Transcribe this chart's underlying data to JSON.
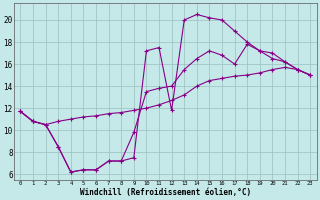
{
  "xlabel": "Windchill (Refroidissement éolien,°C)",
  "background_color": "#c5e8e8",
  "line_color": "#880088",
  "xlim": [
    -0.5,
    23.5
  ],
  "ylim": [
    5.5,
    21.5
  ],
  "yticks": [
    6,
    8,
    10,
    12,
    14,
    16,
    18,
    20
  ],
  "xticks": [
    0,
    1,
    2,
    3,
    4,
    5,
    6,
    7,
    8,
    9,
    10,
    11,
    12,
    13,
    14,
    15,
    16,
    17,
    18,
    19,
    20,
    21,
    22,
    23
  ],
  "line1_x": [
    0,
    1,
    2,
    3,
    4,
    5,
    6,
    7,
    8,
    9,
    10,
    11,
    12,
    13,
    14,
    15,
    16,
    17,
    18,
    19,
    20,
    21,
    22,
    23
  ],
  "line1_y": [
    11.7,
    10.8,
    10.5,
    8.5,
    6.2,
    6.4,
    6.4,
    7.2,
    7.2,
    7.5,
    17.2,
    17.5,
    11.8,
    20.0,
    20.5,
    20.2,
    20.0,
    19.0,
    18.0,
    17.2,
    17.0,
    16.2,
    15.5,
    15.0
  ],
  "line2_x": [
    0,
    1,
    2,
    3,
    4,
    5,
    6,
    7,
    8,
    9,
    10,
    11,
    12,
    13,
    14,
    15,
    16,
    17,
    18,
    19,
    20,
    21,
    22,
    23
  ],
  "line2_y": [
    11.7,
    10.8,
    10.5,
    8.5,
    6.2,
    6.4,
    6.4,
    7.2,
    7.2,
    9.8,
    13.5,
    13.8,
    14.0,
    15.5,
    16.5,
    17.2,
    16.8,
    16.0,
    17.8,
    17.2,
    16.5,
    16.2,
    15.5,
    15.0
  ],
  "line3_x": [
    0,
    1,
    2,
    3,
    4,
    5,
    6,
    7,
    8,
    9,
    10,
    11,
    12,
    13,
    14,
    15,
    16,
    17,
    18,
    19,
    20,
    21,
    22,
    23
  ],
  "line3_y": [
    11.7,
    10.8,
    10.5,
    10.8,
    11.0,
    11.2,
    11.3,
    11.5,
    11.6,
    11.8,
    12.0,
    12.3,
    12.7,
    13.2,
    14.0,
    14.5,
    14.7,
    14.9,
    15.0,
    15.2,
    15.5,
    15.7,
    15.5,
    15.0
  ]
}
